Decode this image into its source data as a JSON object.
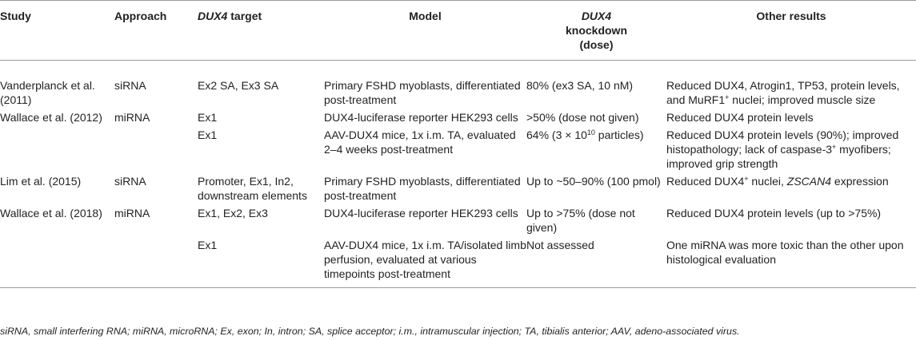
{
  "headers": {
    "study": "Study",
    "approach": "Approach",
    "target_italic": "DUX4",
    "target_rest": " target",
    "model": "Model",
    "kd_italic": "DUX4",
    "kd_line2": "knockdown",
    "kd_line3": "(dose)",
    "other": "Other results"
  },
  "rows": [
    {
      "study": "Vanderplanck et al. (2011)",
      "approach": "siRNA",
      "target": "Ex2 SA, Ex3 SA",
      "model": "Primary FSHD myoblasts, differentiated post-treatment",
      "kd": "80% (ex3 SA, 10 nM)",
      "other_a": "Reduced DUX4, Atrogin1, TP53, protein levels, and MuRF1",
      "other_sup": "+",
      "other_b": " nuclei; improved muscle size"
    },
    {
      "study": "Wallace et al. (2012)",
      "approach": "miRNA",
      "target": "Ex1",
      "model": "DUX4-luciferase reporter HEK293 cells",
      "kd": ">50% (dose not given)",
      "other": "Reduced DUX4 protein levels"
    },
    {
      "study": "",
      "approach": "",
      "target": "Ex1",
      "model": "AAV-DUX4 mice, 1x i.m. TA, evaluated 2–4 weeks post-treatment",
      "kd_a": "64% (3 × 10",
      "kd_sup": "10",
      "kd_b": " particles)",
      "other_a": "Reduced DUX4 protein levels (90%); improved histopathology; lack of caspase-3",
      "other_sup": "+",
      "other_b": " myofibers; improved grip strength"
    },
    {
      "study": "Lim et al. (2015)",
      "approach": "siRNA",
      "target": "Promoter, Ex1, In2, downstream elements",
      "model": "Primary FSHD myoblasts, differentiated post-treatment",
      "kd": "Up to ~50–90% (100 pmol)",
      "other_a": "Reduced DUX4",
      "other_sup": "+",
      "other_b": " nuclei, ",
      "other_italic": "ZSCAN4",
      "other_c": " expression"
    },
    {
      "study": "Wallace et al. (2018)",
      "approach": "miRNA",
      "target": "Ex1, Ex2, Ex3",
      "model": "DUX4-luciferase reporter HEK293 cells",
      "kd": "Up to >75% (dose not given)",
      "other": "Reduced DUX4 protein levels (up to >75%)"
    },
    {
      "study": "",
      "approach": "",
      "target": "Ex1",
      "model": "AAV-DUX4 mice, 1x i.m. TA/isolated limb perfusion, evaluated at various timepoints post-treatment",
      "kd": "Not assessed",
      "other": "One miRNA was more toxic than the other upon histological evaluation"
    }
  ],
  "footnote": "siRNA, small interfering RNA; miRNA, microRNA; Ex, exon; In, intron; SA, splice acceptor; i.m., intramuscular injection; TA, tibialis anterior; AAV, adeno-associated virus."
}
